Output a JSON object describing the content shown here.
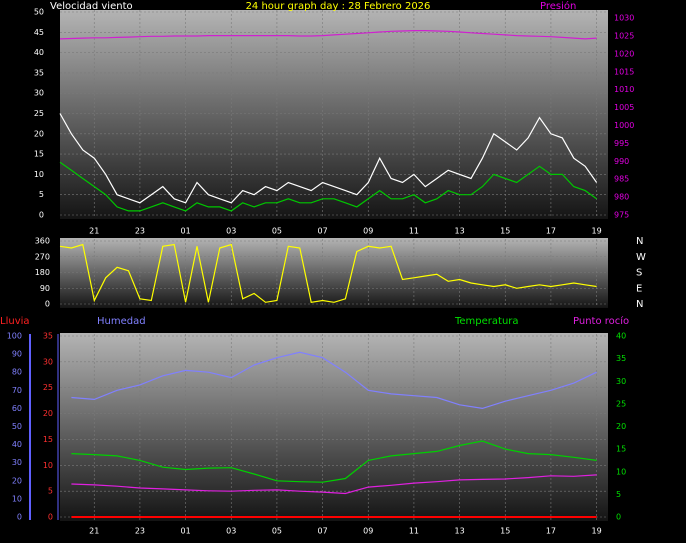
{
  "chart_data": [
    {
      "type": "line",
      "title": "24 hour graph day : 28 Febrero 2026",
      "y_label": "Velocidad viento",
      "y2_label": "Presión",
      "x": [
        0,
        0.5,
        1,
        1.5,
        2,
        2.5,
        3,
        3.5,
        4,
        4.5,
        5,
        5.5,
        6,
        6.5,
        7,
        7.5,
        8,
        8.5,
        9,
        9.5,
        10,
        10.5,
        11,
        11.5,
        12,
        12.5,
        13,
        13.5,
        14,
        14.5,
        15,
        15.5,
        16,
        16.5,
        17,
        17.5,
        18,
        18.5,
        19,
        19.5,
        20,
        20.5,
        21,
        21.5,
        22,
        22.5,
        23,
        23.5
      ],
      "xlim": [
        0,
        24
      ],
      "xticks": [
        {
          "value": 1.5,
          "label": "21"
        },
        {
          "value": 3.5,
          "label": "23"
        },
        {
          "value": 5.5,
          "label": "01"
        },
        {
          "value": 7.5,
          "label": "03"
        },
        {
          "value": 9.5,
          "label": "05"
        },
        {
          "value": 11.5,
          "label": "07"
        },
        {
          "value": 13.5,
          "label": "09"
        },
        {
          "value": 15.5,
          "label": "11"
        },
        {
          "value": 17.5,
          "label": "13"
        },
        {
          "value": 19.5,
          "label": "15"
        },
        {
          "value": 21.5,
          "label": "17"
        },
        {
          "value": 23.5,
          "label": "19"
        }
      ],
      "ylim": [
        0,
        50
      ],
      "yticks": [
        0,
        5,
        10,
        15,
        20,
        25,
        30,
        35,
        40,
        45,
        50
      ],
      "y2lim": [
        975,
        1031.7
      ],
      "y2ticks": [
        975,
        980,
        985,
        990,
        995,
        1000,
        1005,
        1010,
        1015,
        1020,
        1025,
        1030
      ],
      "grid": true,
      "series": [
        {
          "color": "#ffffff",
          "values": [
            25,
            20,
            16,
            14,
            10,
            5,
            4,
            3,
            5,
            7,
            4,
            3,
            8,
            5,
            4,
            3,
            6,
            5,
            7,
            6,
            8,
            7,
            6,
            8,
            7,
            6,
            5,
            8,
            14,
            9,
            8,
            10,
            7,
            9,
            11,
            10,
            9,
            14,
            20,
            18,
            16,
            19,
            24,
            20,
            19,
            14,
            12,
            8
          ]
        },
        {
          "color": "#00c800",
          "values": [
            13,
            11,
            9,
            7,
            5,
            2,
            1,
            1,
            2,
            3,
            2,
            1,
            3,
            2,
            2,
            1,
            3,
            2,
            3,
            3,
            4,
            3,
            3,
            4,
            4,
            3,
            2,
            4,
            6,
            4,
            4,
            5,
            3,
            4,
            6,
            5,
            5,
            7,
            10,
            9,
            8,
            10,
            12,
            10,
            10,
            7,
            6,
            4
          ]
        },
        {
          "color": "#d020d0",
          "axis": "y2",
          "values": [
            1024.2,
            1024.3,
            1024.4,
            1024.5,
            1024.5,
            1024.6,
            1024.7,
            1024.8,
            1024.9,
            1024.9,
            1025.0,
            1025.0,
            1025.0,
            1025.1,
            1025.1,
            1025.1,
            1025.1,
            1025.1,
            1025.1,
            1025.1,
            1025.1,
            1025.0,
            1025.0,
            1025.1,
            1025.3,
            1025.5,
            1025.7,
            1025.9,
            1026.1,
            1026.3,
            1026.4,
            1026.5,
            1026.5,
            1026.4,
            1026.3,
            1026.1,
            1025.9,
            1025.7,
            1025.5,
            1025.3,
            1025.1,
            1025.0,
            1024.9,
            1024.8,
            1024.6,
            1024.4,
            1024.2,
            1024.4
          ]
        }
      ]
    },
    {
      "type": "line",
      "x": [
        0,
        0.5,
        1,
        1.5,
        2,
        2.5,
        3,
        3.5,
        4,
        4.5,
        5,
        5.5,
        6,
        6.5,
        7,
        7.5,
        8,
        8.5,
        9,
        9.5,
        10,
        10.5,
        11,
        11.5,
        12,
        12.5,
        13,
        13.5,
        14,
        14.5,
        15,
        15.5,
        16,
        16.5,
        17,
        17.5,
        18,
        18.5,
        19,
        19.5,
        20,
        20.5,
        21,
        21.5,
        22,
        22.5,
        23,
        23.5
      ],
      "xlim": [
        0,
        24
      ],
      "xticks": [
        1.5,
        3.5,
        5.5,
        7.5,
        9.5,
        11.5,
        13.5,
        15.5,
        17.5,
        19.5,
        21.5,
        23.5
      ],
      "ylim": [
        0,
        360
      ],
      "yticks": [
        0,
        90,
        180,
        270,
        360
      ],
      "y2lim": [
        0,
        360
      ],
      "y2ticks": [
        {
          "value": 360,
          "label": "N"
        },
        {
          "value": 270,
          "label": "W"
        },
        {
          "value": 180,
          "label": "S"
        },
        {
          "value": 90,
          "label": "E"
        },
        {
          "value": 0,
          "label": "N"
        }
      ],
      "grid": true,
      "series": [
        {
          "color": "#ffff00",
          "values": [
            330,
            320,
            340,
            20,
            150,
            210,
            190,
            30,
            20,
            330,
            340,
            10,
            330,
            10,
            320,
            340,
            30,
            60,
            10,
            20,
            330,
            320,
            10,
            20,
            10,
            30,
            300,
            330,
            320,
            330,
            140,
            150,
            160,
            170,
            130,
            140,
            120,
            110,
            100,
            110,
            90,
            100,
            110,
            100,
            110,
            120,
            110,
            100
          ]
        }
      ]
    },
    {
      "type": "line",
      "x": [
        0.5,
        1.5,
        2.5,
        3.5,
        4.5,
        5.5,
        6.5,
        7.5,
        8.5,
        9.5,
        10.5,
        11.5,
        12.5,
        13.5,
        14.5,
        15.5,
        16.5,
        17.5,
        18.5,
        19.5,
        20.5,
        21.5,
        22.5,
        23.5
      ],
      "xlim": [
        0,
        24
      ],
      "xticks": [
        {
          "value": 1.5,
          "label": "21"
        },
        {
          "value": 3.5,
          "label": "23"
        },
        {
          "value": 5.5,
          "label": "01"
        },
        {
          "value": 7.5,
          "label": "03"
        },
        {
          "value": 9.5,
          "label": "05"
        },
        {
          "value": 11.5,
          "label": "07"
        },
        {
          "value": 13.5,
          "label": "09"
        },
        {
          "value": 15.5,
          "label": "11"
        },
        {
          "value": 17.5,
          "label": "13"
        },
        {
          "value": 19.5,
          "label": "15"
        },
        {
          "value": 21.5,
          "label": "17"
        },
        {
          "value": 23.5,
          "label": "19"
        }
      ],
      "ylim": [
        0,
        35
      ],
      "yticks": [
        0,
        5,
        10,
        15,
        20,
        25,
        30,
        35
      ],
      "y2lim": [
        0,
        40
      ],
      "y2ticks": [
        0,
        5,
        10,
        15,
        20,
        25,
        30,
        35,
        40
      ],
      "y3lim": [
        0,
        100
      ],
      "y3ticks": [
        0,
        10,
        20,
        30,
        40,
        50,
        60,
        70,
        80,
        90,
        100
      ],
      "grid": true,
      "series": [
        {
          "name": "Humedad",
          "color": "#8080ff",
          "axis": "y3",
          "values": [
            66,
            65,
            70,
            73,
            78,
            81,
            80,
            77,
            84,
            88,
            91,
            88,
            80,
            70,
            68,
            67,
            66,
            62,
            60,
            64,
            67,
            70,
            74,
            80
          ]
        },
        {
          "name": "Temperatura",
          "color": "#00d000",
          "axis": "y2",
          "values": [
            14,
            13.8,
            13.5,
            12.5,
            11,
            10.5,
            10.8,
            10.9,
            9.5,
            8,
            7.8,
            7.7,
            8.5,
            12.5,
            13.5,
            14,
            14.5,
            15.8,
            16.8,
            15,
            14,
            13.8,
            13.2,
            12.5
          ]
        },
        {
          "name": "Punto rocío",
          "color": "#e020e0",
          "axis": "y2",
          "values": [
            7.3,
            7.1,
            6.8,
            6.4,
            6.2,
            6,
            5.8,
            5.7,
            5.9,
            6,
            5.7,
            5.5,
            5.2,
            6.6,
            7,
            7.5,
            7.8,
            8.2,
            8.3,
            8.4,
            8.7,
            9.1,
            9.0,
            9.3
          ]
        },
        {
          "name": "Lluvia",
          "color": "#ff0000",
          "axis": "y",
          "values": [
            0,
            0,
            0,
            0,
            0,
            0,
            0,
            0,
            0,
            0,
            0,
            0,
            0,
            0,
            0,
            0,
            0,
            0,
            0,
            0,
            0,
            0,
            0,
            0
          ]
        }
      ]
    }
  ]
}
